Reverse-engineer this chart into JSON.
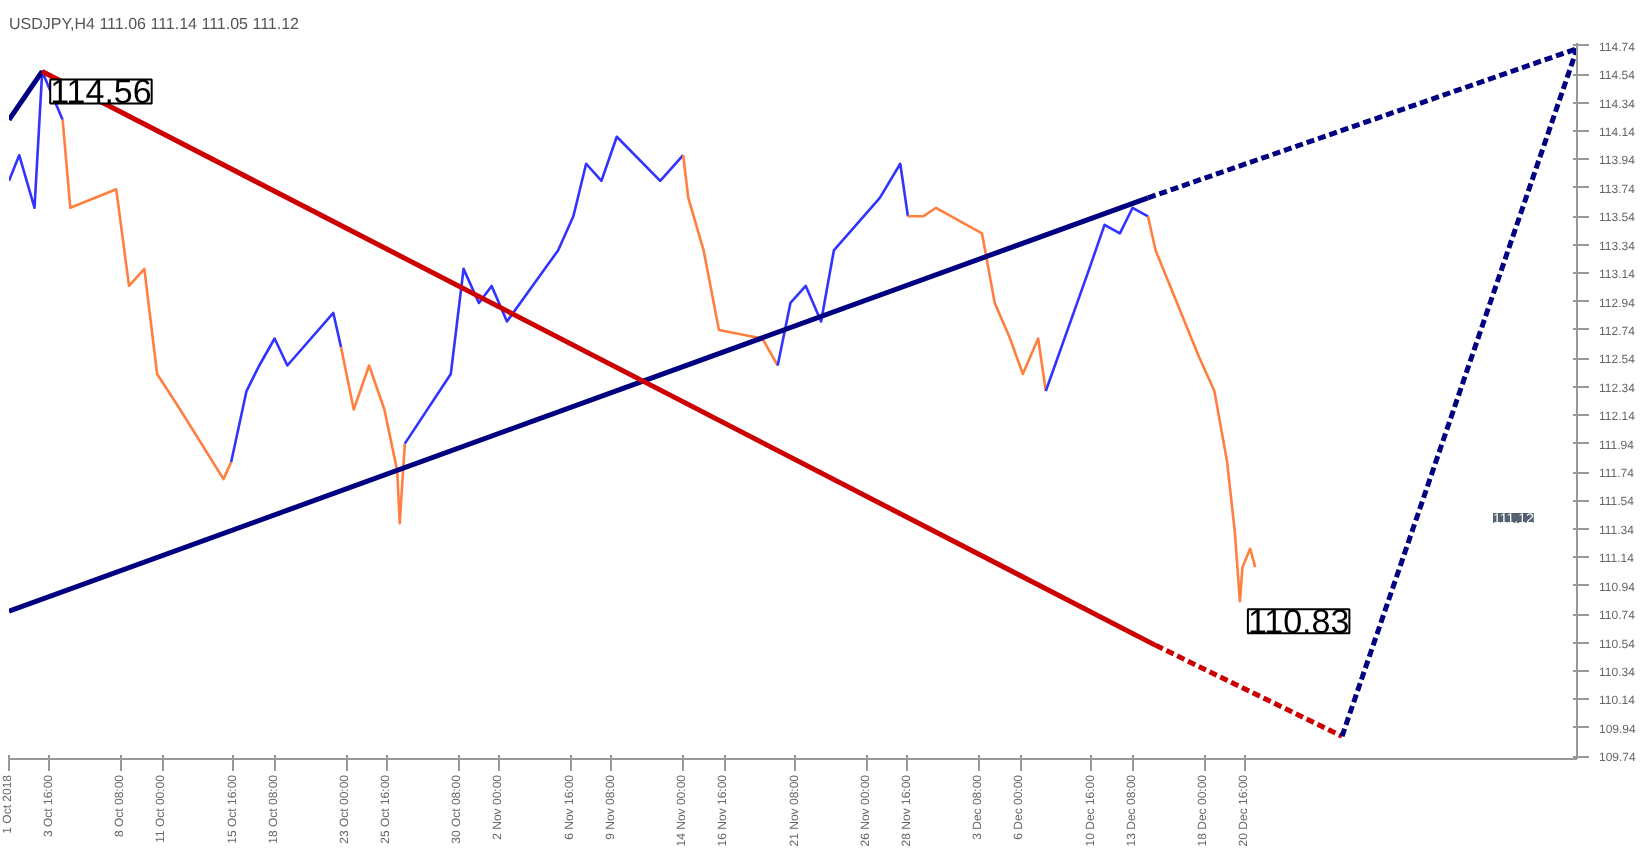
{
  "chart_data": {
    "type": "line",
    "title": "USDJPY,H4 111.06 111.14 111.05 111.12",
    "xlim": [
      "2018-10-01T00:00",
      "2019-01-11T08:00"
    ],
    "ylim": [
      109.72,
      114.76
    ],
    "xticks": [
      {
        "value": "2018-10-01T00:00",
        "label": "1 Oct 2018"
      },
      {
        "value": "2018-10-03T16:00",
        "label": "3 Oct 16:00"
      },
      {
        "value": "2018-10-08T08:00",
        "label": "8 Oct 08:00"
      },
      {
        "value": "2018-10-11T00:00",
        "label": "11 Oct 00:00"
      },
      {
        "value": "2018-10-15T16:00",
        "label": "15 Oct 16:00"
      },
      {
        "value": "2018-10-18T08:00",
        "label": "18 Oct 08:00"
      },
      {
        "value": "2018-10-23T00:00",
        "label": "23 Oct 00:00"
      },
      {
        "value": "2018-10-25T16:00",
        "label": "25 Oct 16:00"
      },
      {
        "value": "2018-10-30T08:00",
        "label": "30 Oct 08:00"
      },
      {
        "value": "2018-11-02T00:00",
        "label": "2 Nov 00:00"
      },
      {
        "value": "2018-11-06T16:00",
        "label": "6 Nov 16:00"
      },
      {
        "value": "2018-11-09T08:00",
        "label": "9 Nov 08:00"
      },
      {
        "value": "2018-11-14T00:00",
        "label": "14 Nov 00:00"
      },
      {
        "value": "2018-11-16T16:00",
        "label": "16 Nov 16:00"
      },
      {
        "value": "2018-11-21T08:00",
        "label": "21 Nov 08:00"
      },
      {
        "value": "2018-11-26T00:00",
        "label": "26 Nov 00:00"
      },
      {
        "value": "2018-11-28T16:00",
        "label": "28 Nov 16:00"
      },
      {
        "value": "2018-12-03T08:00",
        "label": "3 Dec 08:00"
      },
      {
        "value": "2018-12-06T00:00",
        "label": "6 Dec 00:00"
      },
      {
        "value": "2018-12-10T16:00",
        "label": "10 Dec 16:00"
      },
      {
        "value": "2018-12-13T08:00",
        "label": "13 Dec 08:00"
      },
      {
        "value": "2018-12-18T00:00",
        "label": "18 Dec 00:00"
      },
      {
        "value": "2018-12-20T16:00",
        "label": "20 Dec 16:00"
      }
    ],
    "yticks": [
      109.74,
      109.94,
      110.14,
      110.34,
      110.54,
      110.74,
      110.94,
      111.14,
      111.34,
      111.54,
      111.74,
      111.94,
      112.14,
      112.34,
      112.54,
      112.74,
      112.94,
      113.14,
      113.34,
      113.54,
      113.74,
      113.94,
      114.14,
      114.34,
      114.54,
      114.74
    ],
    "grid": false,
    "series": [
      {
        "color": "#3333ff",
        "x": [
          "2018-10-01T00:00",
          "2018-10-01T16:00",
          "2018-10-02T16:00",
          "2018-10-03T04:00",
          "2018-10-04T12:00"
        ],
        "values": [
          113.79,
          113.97,
          113.6,
          114.56,
          114.22
        ]
      },
      {
        "color": "#ff7f3f",
        "x": [
          "2018-10-04T12:00",
          "2018-10-05T00:00",
          "2018-10-08T00:00",
          "2018-10-08T20:00",
          "2018-10-09T20:00",
          "2018-10-10T16:00",
          "2018-10-12T04:00",
          "2018-10-15T00:00",
          "2018-10-15T12:00"
        ],
        "values": [
          114.22,
          113.6,
          113.73,
          113.05,
          113.17,
          112.43,
          112.18,
          111.69,
          111.81
        ]
      },
      {
        "color": "#3333ff",
        "x": [
          "2018-10-15T12:00",
          "2018-10-16T12:00",
          "2018-10-17T08:00",
          "2018-10-18T08:00",
          "2018-10-19T04:00",
          "2018-10-22T04:00",
          "2018-10-22T16:00"
        ],
        "values": [
          111.81,
          112.31,
          112.49,
          112.68,
          112.49,
          112.86,
          112.62
        ]
      },
      {
        "color": "#ff7f3f",
        "x": [
          "2018-10-22T16:00",
          "2018-10-23T12:00",
          "2018-10-24T12:00",
          "2018-10-25T12:00",
          "2018-10-26T08:00",
          "2018-10-26T12:00",
          "2018-10-26T20:00"
        ],
        "values": [
          112.62,
          112.18,
          112.49,
          112.18,
          111.75,
          111.38,
          111.94
        ]
      },
      {
        "color": "#3333ff",
        "x": [
          "2018-10-26T20:00",
          "2018-10-29T20:00",
          "2018-10-30T16:00",
          "2018-10-31T16:00",
          "2018-11-01T12:00",
          "2018-11-02T12:00",
          "2018-11-05T20:00",
          "2018-11-06T20:00",
          "2018-11-07T16:00",
          "2018-11-08T16:00",
          "2018-11-09T16:00",
          "2018-11-12T12:00",
          "2018-11-14T00:00"
        ],
        "values": [
          111.94,
          112.43,
          113.17,
          112.93,
          113.05,
          112.8,
          113.3,
          113.54,
          113.91,
          113.79,
          114.1,
          113.79,
          113.97
        ]
      },
      {
        "color": "#ff7f3f",
        "x": [
          "2018-11-14T00:00",
          "2018-11-14T08:00",
          "2018-11-15T08:00",
          "2018-11-16T08:00",
          "2018-11-19T04:00",
          "2018-11-20T04:00"
        ],
        "values": [
          113.97,
          113.67,
          113.3,
          112.74,
          112.68,
          112.49
        ]
      },
      {
        "color": "#3333ff",
        "x": [
          "2018-11-20T04:00",
          "2018-11-21T00:00",
          "2018-11-22T00:00",
          "2018-11-23T00:00",
          "2018-11-23T20:00",
          "2018-11-26T20:00",
          "2018-11-28T04:00",
          "2018-11-28T16:00"
        ],
        "values": [
          112.49,
          112.93,
          113.05,
          112.8,
          113.3,
          113.67,
          113.91,
          113.54
        ]
      },
      {
        "color": "#ff7f3f",
        "x": [
          "2018-11-28T16:00",
          "2018-11-29T16:00",
          "2018-11-30T12:00",
          "2018-12-03T12:00",
          "2018-12-04T08:00",
          "2018-12-05T08:00",
          "2018-12-06T04:00",
          "2018-12-07T04:00",
          "2018-12-07T16:00"
        ],
        "values": [
          113.54,
          113.54,
          113.6,
          113.42,
          112.93,
          112.68,
          112.43,
          112.68,
          112.31
        ]
      },
      {
        "color": "#3333ff",
        "x": [
          "2018-12-07T16:00",
          "2018-12-10T12:00",
          "2018-12-11T12:00",
          "2018-12-12T12:00",
          "2018-12-13T08:00",
          "2018-12-14T08:00"
        ],
        "values": [
          112.31,
          113.17,
          113.48,
          113.42,
          113.6,
          113.54
        ]
      },
      {
        "color": "#ff7f3f",
        "x": [
          "2018-12-14T08:00",
          "2018-12-14T20:00",
          "2018-12-17T16:00",
          "2018-12-18T16:00",
          "2018-12-19T12:00",
          "2018-12-20T00:00",
          "2018-12-20T08:00",
          "2018-12-20T12:00",
          "2018-12-21T00:00",
          "2018-12-21T08:00"
        ],
        "values": [
          113.54,
          113.3,
          112.55,
          112.31,
          111.81,
          111.32,
          110.83,
          111.07,
          111.2,
          111.07
        ]
      },
      {
        "color": "#000080",
        "line_style": "solid",
        "x": [
          "2018-10-01T00:00",
          "2018-10-03T04:00"
        ],
        "values": [
          114.22,
          114.56
        ]
      },
      {
        "color": "#000080",
        "line_style": "solid",
        "x": [
          "2018-10-01T00:00",
          "2018-12-14T08:00"
        ],
        "values": [
          110.76,
          113.67
        ]
      },
      {
        "color": "#000080",
        "line_style": "dashed",
        "x": [
          "2018-12-14T08:00",
          "2019-01-11T08:00"
        ],
        "values": [
          113.67,
          114.72
        ]
      },
      {
        "color": "#cc0000",
        "line_style": "solid",
        "x": [
          "2018-10-03T04:00",
          "2018-12-14T20:00"
        ],
        "values": [
          114.56,
          110.52
        ]
      },
      {
        "color": "#cc0000",
        "line_style": "dashed",
        "x": [
          "2018-12-14T20:00",
          "2018-12-27T00:00"
        ],
        "values": [
          110.52,
          109.88
        ]
      },
      {
        "color": "#000080",
        "line_style": "dashed",
        "x": [
          "2018-12-27T00:00",
          "2019-01-11T08:00"
        ],
        "values": [
          109.88,
          114.72
        ]
      }
    ],
    "annotations": [
      {
        "text": "114.56",
        "x": "2018-10-03T04:00",
        "y": 114.56
      },
      {
        "text": "110.83",
        "x": "2018-12-20T08:00",
        "y": 110.83
      },
      "111.12"
    ]
  }
}
